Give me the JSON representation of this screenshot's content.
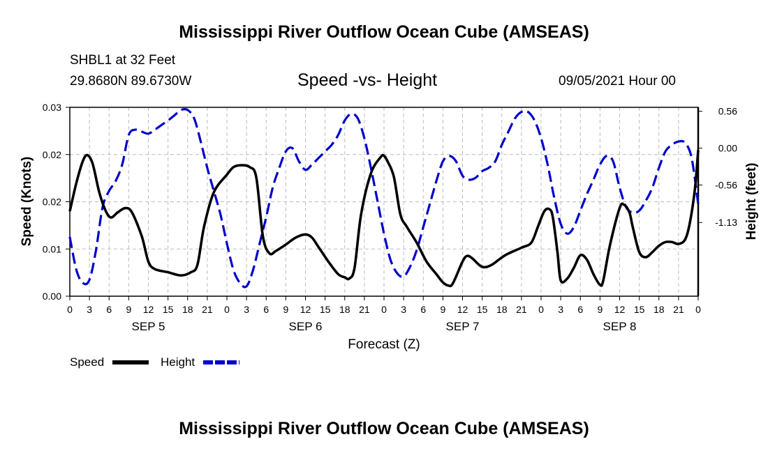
{
  "header": {
    "title": "Mississippi River Outflow Ocean Cube (AMSEAS)",
    "station": "SHBL1 at 32 Feet",
    "location": "29.8680N  89.6730W",
    "subtitle": "Speed -vs- Height",
    "datetime": "09/05/2021 Hour 00"
  },
  "footer": {
    "title": "Mississippi River Outflow Ocean Cube (AMSEAS)"
  },
  "legend": {
    "speed_label": "Speed",
    "height_label": "Height"
  },
  "colors": {
    "speed": "#000000",
    "height": "#0000cc",
    "grid": "#bbbbbb"
  },
  "chart_data": {
    "type": "line",
    "title": "Speed -vs- Height",
    "xlabel": "Forecast (Z)",
    "ylabel": "Speed (Knots)",
    "y2label": "Height (feet)",
    "x_range_hours": [
      0,
      96
    ],
    "x_tick_hours": [
      0,
      3,
      6,
      9,
      12,
      15,
      18,
      21,
      24,
      27,
      30,
      33,
      36,
      39,
      42,
      45,
      48,
      51,
      54,
      57,
      60,
      63,
      66,
      69,
      72,
      75,
      78,
      81,
      84,
      87,
      90,
      93,
      96
    ],
    "x_tick_labels": [
      "0",
      "3",
      "6",
      "9",
      "12",
      "15",
      "18",
      "21",
      "0",
      "3",
      "6",
      "9",
      "12",
      "15",
      "18",
      "21",
      "0",
      "3",
      "6",
      "9",
      "12",
      "15",
      "18",
      "21",
      "0",
      "3",
      "6",
      "9",
      "12",
      "15",
      "18",
      "21",
      "0"
    ],
    "day_labels": [
      {
        "label": "SEP 5",
        "hour": 12
      },
      {
        "label": "SEP 6",
        "hour": 36
      },
      {
        "label": "SEP 7",
        "hour": 60
      },
      {
        "label": "SEP 8",
        "hour": 84
      }
    ],
    "y_left": {
      "range": [
        0,
        0.03
      ],
      "ticks": [
        0,
        0.0075,
        0.015,
        0.0225,
        0.03
      ],
      "tick_labels": [
        "0.00",
        "0.01",
        "0.02",
        "0.02",
        "0.03"
      ]
    },
    "y_right": {
      "range": [
        -2.25,
        0.62
      ],
      "ticks": [
        0.56,
        0.0,
        -0.56,
        -1.13
      ],
      "tick_labels": [
        "0.56",
        "0.00",
        "-0.56",
        "-1.13"
      ]
    },
    "grid": true,
    "series": [
      {
        "name": "Speed",
        "axis": "left",
        "style": "solid",
        "points": [
          [
            0,
            0.0135
          ],
          [
            1,
            0.018
          ],
          [
            2,
            0.0215
          ],
          [
            2.7,
            0.0224
          ],
          [
            3.5,
            0.021
          ],
          [
            4.5,
            0.0165
          ],
          [
            5.5,
            0.0135
          ],
          [
            6.3,
            0.0125
          ],
          [
            7.3,
            0.0133
          ],
          [
            8.5,
            0.014
          ],
          [
            9.5,
            0.0133
          ],
          [
            11,
            0.0095
          ],
          [
            12,
            0.0055
          ],
          [
            13,
            0.0043
          ],
          [
            15,
            0.0038
          ],
          [
            17,
            0.0033
          ],
          [
            18.5,
            0.0038
          ],
          [
            19.5,
            0.005
          ],
          [
            20.5,
            0.011
          ],
          [
            22,
            0.0165
          ],
          [
            24,
            0.0193
          ],
          [
            25,
            0.0205
          ],
          [
            26.2,
            0.0208
          ],
          [
            27.5,
            0.0205
          ],
          [
            28.5,
            0.0188
          ],
          [
            29.5,
            0.0095
          ],
          [
            30.5,
            0.0068
          ],
          [
            31.5,
            0.0072
          ],
          [
            33,
            0.0082
          ],
          [
            34.5,
            0.0093
          ],
          [
            36,
            0.0098
          ],
          [
            37,
            0.0093
          ],
          [
            38,
            0.0078
          ],
          [
            39.5,
            0.0055
          ],
          [
            41,
            0.0035
          ],
          [
            42,
            0.003
          ],
          [
            42.7,
            0.0028
          ],
          [
            43.5,
            0.0045
          ],
          [
            44.5,
            0.013
          ],
          [
            46,
            0.0195
          ],
          [
            47.5,
            0.0221
          ],
          [
            48,
            0.0223
          ],
          [
            48.5,
            0.0215
          ],
          [
            49.5,
            0.019
          ],
          [
            50.5,
            0.013
          ],
          [
            51.5,
            0.011
          ],
          [
            53,
            0.0085
          ],
          [
            54.5,
            0.0055
          ],
          [
            56,
            0.0035
          ],
          [
            57,
            0.0022
          ],
          [
            57.8,
            0.0017
          ],
          [
            58.5,
            0.002
          ],
          [
            60,
            0.0055
          ],
          [
            60.7,
            0.0064
          ],
          [
            61.5,
            0.006
          ],
          [
            62.5,
            0.005
          ],
          [
            63.3,
            0.0046
          ],
          [
            64.5,
            0.005
          ],
          [
            66.5,
            0.0065
          ],
          [
            69,
            0.0077
          ],
          [
            70.5,
            0.0085
          ],
          [
            71.5,
            0.011
          ],
          [
            72.5,
            0.0135
          ],
          [
            73.3,
            0.0138
          ],
          [
            73.8,
            0.0125
          ],
          [
            74.5,
            0.007
          ],
          [
            75,
            0.0025
          ],
          [
            76,
            0.0028
          ],
          [
            77,
            0.0045
          ],
          [
            78,
            0.0065
          ],
          [
            79,
            0.0058
          ],
          [
            80,
            0.0035
          ],
          [
            81,
            0.0018
          ],
          [
            81.5,
            0.0025
          ],
          [
            82.5,
            0.008
          ],
          [
            84,
            0.014
          ],
          [
            84.7,
            0.0145
          ],
          [
            85.5,
            0.0133
          ],
          [
            86,
            0.011
          ],
          [
            87,
            0.007
          ],
          [
            88,
            0.0062
          ],
          [
            89,
            0.007
          ],
          [
            90,
            0.008
          ],
          [
            91,
            0.0086
          ],
          [
            92,
            0.0086
          ],
          [
            93,
            0.0083
          ],
          [
            94,
            0.009
          ],
          [
            94.7,
            0.0115
          ],
          [
            95.5,
            0.017
          ],
          [
            96,
            0.0232
          ]
        ]
      },
      {
        "name": "Height",
        "axis": "right",
        "style": "dashed",
        "points": [
          [
            0,
            -1.35
          ],
          [
            1,
            -1.85
          ],
          [
            2,
            -2.05
          ],
          [
            3,
            -2.0
          ],
          [
            4,
            -1.55
          ],
          [
            5,
            -0.9
          ],
          [
            6,
            -0.65
          ],
          [
            7,
            -0.5
          ],
          [
            8,
            -0.25
          ],
          [
            9,
            0.2
          ],
          [
            10,
            0.28
          ],
          [
            11,
            0.25
          ],
          [
            12,
            0.22
          ],
          [
            13,
            0.28
          ],
          [
            14,
            0.35
          ],
          [
            15,
            0.42
          ],
          [
            16,
            0.5
          ],
          [
            17,
            0.58
          ],
          [
            18,
            0.58
          ],
          [
            19,
            0.45
          ],
          [
            20,
            0.1
          ],
          [
            21,
            -0.3
          ],
          [
            22,
            -0.65
          ],
          [
            23,
            -1.0
          ],
          [
            24,
            -1.45
          ],
          [
            25,
            -1.85
          ],
          [
            26,
            -2.05
          ],
          [
            27,
            -2.1
          ],
          [
            28,
            -1.85
          ],
          [
            29,
            -1.45
          ],
          [
            30,
            -1.05
          ],
          [
            31,
            -0.6
          ],
          [
            32,
            -0.3
          ],
          [
            33,
            -0.05
          ],
          [
            34,
            0.0
          ],
          [
            35,
            -0.2
          ],
          [
            36,
            -0.33
          ],
          [
            37,
            -0.25
          ],
          [
            38,
            -0.15
          ],
          [
            39,
            -0.05
          ],
          [
            40,
            0.05
          ],
          [
            41,
            0.2
          ],
          [
            42,
            0.42
          ],
          [
            43,
            0.52
          ],
          [
            44,
            0.45
          ],
          [
            45,
            0.15
          ],
          [
            46,
            -0.3
          ],
          [
            47,
            -0.8
          ],
          [
            48,
            -1.3
          ],
          [
            49,
            -1.7
          ],
          [
            50,
            -1.9
          ],
          [
            51,
            -1.95
          ],
          [
            52,
            -1.8
          ],
          [
            53,
            -1.55
          ],
          [
            54,
            -1.2
          ],
          [
            55,
            -0.85
          ],
          [
            56,
            -0.5
          ],
          [
            57,
            -0.2
          ],
          [
            58,
            -0.12
          ],
          [
            59,
            -0.2
          ],
          [
            60,
            -0.42
          ],
          [
            61,
            -0.48
          ],
          [
            62,
            -0.45
          ],
          [
            63,
            -0.35
          ],
          [
            64,
            -0.3
          ],
          [
            65,
            -0.2
          ],
          [
            66,
            0.05
          ],
          [
            67,
            0.25
          ],
          [
            68,
            0.45
          ],
          [
            69,
            0.55
          ],
          [
            70,
            0.55
          ],
          [
            71,
            0.42
          ],
          [
            72,
            0.15
          ],
          [
            73,
            -0.25
          ],
          [
            74,
            -0.75
          ],
          [
            75,
            -1.15
          ],
          [
            76,
            -1.3
          ],
          [
            77,
            -1.2
          ],
          [
            78,
            -0.95
          ],
          [
            79,
            -0.7
          ],
          [
            80,
            -0.48
          ],
          [
            81,
            -0.25
          ],
          [
            82,
            -0.12
          ],
          [
            83,
            -0.2
          ],
          [
            84,
            -0.6
          ],
          [
            85,
            -0.9
          ],
          [
            86,
            -0.98
          ],
          [
            87,
            -0.95
          ],
          [
            88,
            -0.8
          ],
          [
            89,
            -0.6
          ],
          [
            90,
            -0.3
          ],
          [
            91,
            -0.05
          ],
          [
            92,
            0.05
          ],
          [
            93,
            0.1
          ],
          [
            94,
            0.08
          ],
          [
            95,
            -0.15
          ],
          [
            96,
            -0.85
          ]
        ]
      }
    ]
  }
}
